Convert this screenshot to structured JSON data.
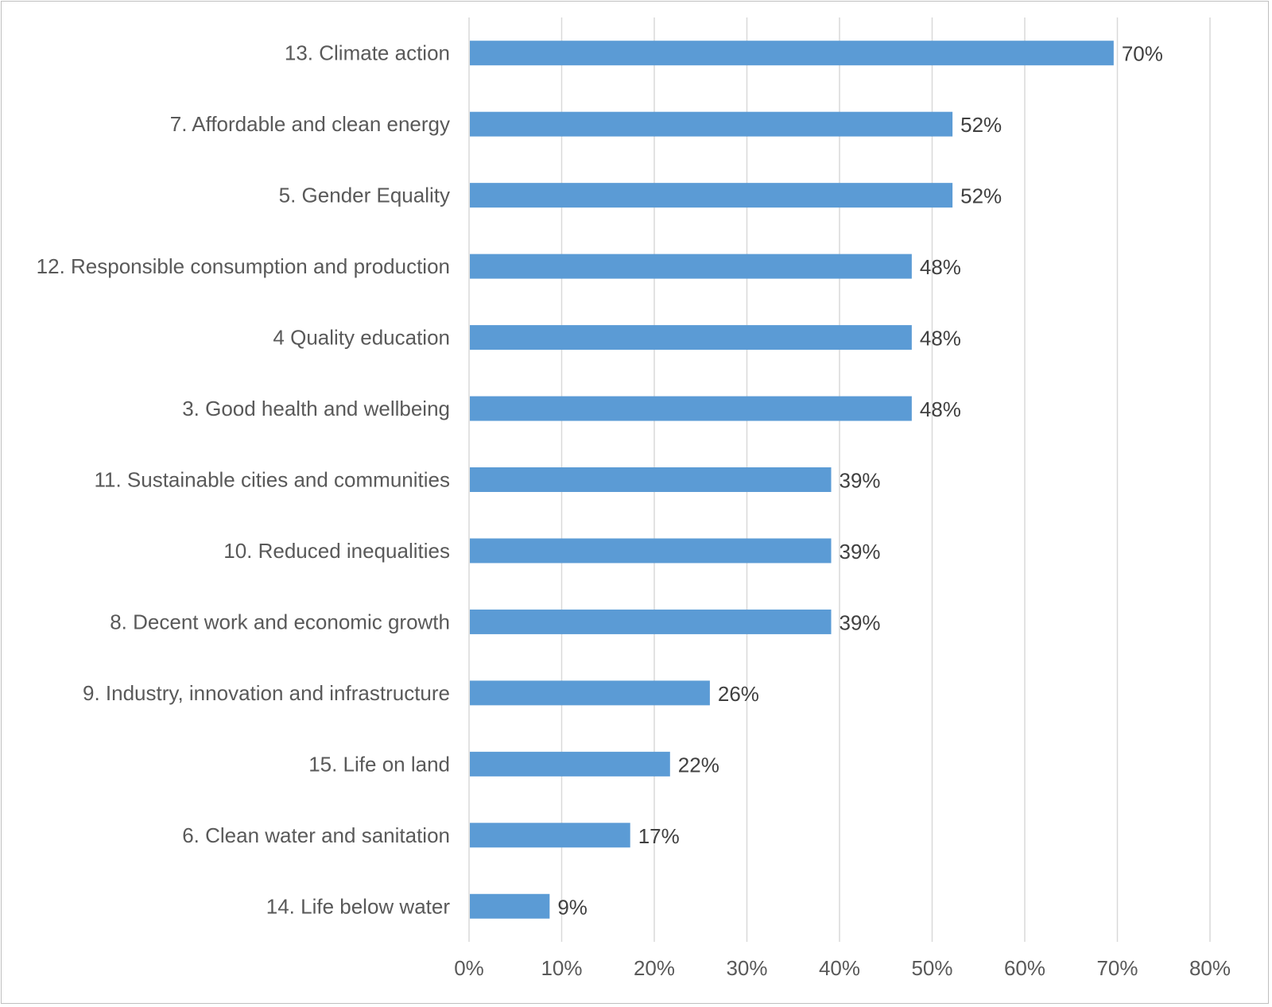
{
  "chart_data": {
    "type": "bar",
    "orientation": "horizontal",
    "categories": [
      "13. Climate action",
      "7. Affordable and clean energy",
      "5. Gender Equality",
      "12. Responsible consumption and production",
      "4 Quality education",
      "3. Good health and wellbeing",
      "11. Sustainable cities and communities",
      "10. Reduced inequalities",
      "8. Decent work and economic growth",
      "9. Industry, innovation and infrastructure",
      "15. Life on land",
      "6. Clean water and sanitation",
      "14. Life below water"
    ],
    "values": [
      0.696,
      0.522,
      0.522,
      0.478,
      0.478,
      0.478,
      0.391,
      0.391,
      0.391,
      0.26,
      0.217,
      0.174,
      0.087
    ],
    "value_labels": [
      "70%",
      "52%",
      "52%",
      "48%",
      "48%",
      "48%",
      "39%",
      "39%",
      "39%",
      "26%",
      "22%",
      "17%",
      "9%"
    ],
    "xlim": [
      0,
      0.8
    ],
    "x_ticks": [
      0,
      0.1,
      0.2,
      0.3,
      0.4,
      0.5,
      0.6,
      0.7,
      0.8
    ],
    "x_tick_labels": [
      "0%",
      "10%",
      "20%",
      "30%",
      "40%",
      "50%",
      "60%",
      "70%",
      "80%"
    ],
    "grid": "vertical",
    "legend": "none",
    "bar_color": "#5b9bd5",
    "title": "",
    "xlabel": "",
    "ylabel": ""
  }
}
